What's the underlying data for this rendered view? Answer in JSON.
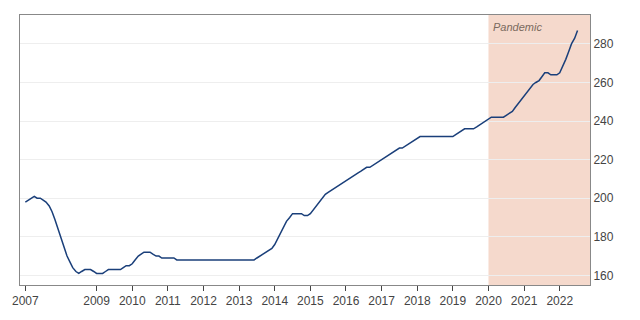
{
  "chart_data": {
    "type": "line",
    "x": [
      2007.0,
      2007.08,
      2007.17,
      2007.25,
      2007.33,
      2007.42,
      2007.5,
      2007.58,
      2007.67,
      2007.75,
      2007.83,
      2007.92,
      2008.0,
      2008.08,
      2008.17,
      2008.25,
      2008.33,
      2008.42,
      2008.5,
      2008.58,
      2008.67,
      2008.75,
      2008.83,
      2008.92,
      2009.0,
      2009.08,
      2009.17,
      2009.25,
      2009.33,
      2009.42,
      2009.5,
      2009.58,
      2009.67,
      2009.75,
      2009.83,
      2009.92,
      2010.0,
      2010.08,
      2010.17,
      2010.25,
      2010.33,
      2010.42,
      2010.5,
      2010.58,
      2010.67,
      2010.75,
      2010.83,
      2010.92,
      2011.0,
      2011.08,
      2011.17,
      2011.25,
      2011.33,
      2011.42,
      2011.5,
      2011.58,
      2011.67,
      2011.75,
      2011.83,
      2011.92,
      2012.0,
      2012.08,
      2012.17,
      2012.25,
      2012.33,
      2012.42,
      2012.5,
      2012.58,
      2012.67,
      2012.75,
      2012.83,
      2012.92,
      2013.0,
      2013.08,
      2013.17,
      2013.25,
      2013.33,
      2013.42,
      2013.5,
      2013.58,
      2013.67,
      2013.75,
      2013.83,
      2013.92,
      2014.0,
      2014.08,
      2014.17,
      2014.25,
      2014.33,
      2014.42,
      2014.5,
      2014.58,
      2014.67,
      2014.75,
      2014.83,
      2014.92,
      2015.0,
      2015.08,
      2015.17,
      2015.25,
      2015.33,
      2015.42,
      2015.5,
      2015.58,
      2015.67,
      2015.75,
      2015.83,
      2015.92,
      2016.0,
      2016.08,
      2016.17,
      2016.25,
      2016.33,
      2016.42,
      2016.5,
      2016.58,
      2016.67,
      2016.75,
      2016.83,
      2016.92,
      2017.0,
      2017.08,
      2017.17,
      2017.25,
      2017.33,
      2017.42,
      2017.5,
      2017.58,
      2017.67,
      2017.75,
      2017.83,
      2017.92,
      2018.0,
      2018.08,
      2018.17,
      2018.25,
      2018.33,
      2018.42,
      2018.5,
      2018.58,
      2018.67,
      2018.75,
      2018.83,
      2018.92,
      2019.0,
      2019.08,
      2019.17,
      2019.25,
      2019.33,
      2019.42,
      2019.5,
      2019.58,
      2019.67,
      2019.75,
      2019.83,
      2019.92,
      2020.0,
      2020.08,
      2020.17,
      2020.25,
      2020.33,
      2020.42,
      2020.5,
      2020.58,
      2020.67,
      2020.75,
      2020.83,
      2020.92,
      2021.0,
      2021.08,
      2021.17,
      2021.25,
      2021.33,
      2021.42,
      2021.5,
      2021.58,
      2021.67,
      2021.75,
      2021.83,
      2021.92,
      2022.0,
      2022.08,
      2022.17,
      2022.25,
      2022.33,
      2022.42,
      2022.5
    ],
    "values": [
      198,
      199,
      200,
      201,
      200,
      200,
      199,
      198,
      196,
      193,
      189,
      184,
      179,
      174,
      170,
      167,
      164,
      162,
      161,
      162,
      163,
      163,
      163,
      162,
      161,
      161,
      161,
      162,
      163,
      163,
      163,
      163,
      163,
      164,
      165,
      165,
      166,
      168,
      170,
      171,
      172,
      172,
      172,
      171,
      170,
      170,
      169,
      169,
      169,
      169,
      169,
      168,
      168,
      168,
      168,
      168,
      168,
      168,
      168,
      168,
      168,
      168,
      168,
      168,
      168,
      168,
      168,
      168,
      168,
      168,
      168,
      168,
      168,
      168,
      168,
      168,
      168,
      168,
      169,
      170,
      171,
      172,
      173,
      174,
      176,
      179,
      182,
      185,
      188,
      190,
      192,
      192,
      192,
      192,
      191,
      191,
      192,
      194,
      196,
      198,
      200,
      202,
      203,
      204,
      205,
      206,
      207,
      208,
      209,
      210,
      211,
      212,
      213,
      214,
      215,
      216,
      216,
      217,
      218,
      219,
      220,
      221,
      222,
      223,
      224,
      225,
      226,
      226,
      227,
      228,
      229,
      230,
      231,
      232,
      232,
      232,
      232,
      232,
      232,
      232,
      232,
      232,
      232,
      232,
      232,
      233,
      234,
      235,
      236,
      236,
      236,
      236,
      237,
      238,
      239,
      240,
      241,
      242,
      242,
      242,
      242,
      242,
      243,
      244,
      245,
      247,
      249,
      251,
      253,
      255,
      257,
      259,
      260,
      261,
      263,
      265,
      265,
      264,
      264,
      264,
      265,
      268,
      272,
      276,
      280,
      283,
      287
    ],
    "color": "#1a3f7a",
    "xlim": [
      2006.85,
      2022.85
    ],
    "ylim": [
      155,
      295
    ],
    "xticks": [
      2007,
      2009,
      2010,
      2011,
      2012,
      2013,
      2014,
      2015,
      2016,
      2017,
      2018,
      2019,
      2020,
      2021,
      2022
    ],
    "yticks": [
      160,
      180,
      200,
      220,
      240,
      260,
      280
    ],
    "grid": true,
    "shaded_regions": [
      {
        "start": 2020.0,
        "label": "Pandemic",
        "color": "#f5d9cc"
      }
    ]
  }
}
